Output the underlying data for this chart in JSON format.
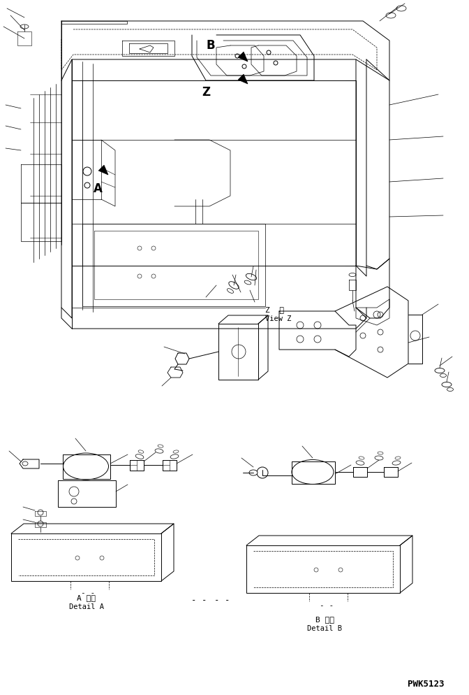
{
  "background_color": "#ffffff",
  "line_color": "#000000",
  "part_code": "PWK5123",
  "label_A_ja": "A 詳細",
  "label_A_en": "Detail A",
  "label_B_ja": "B 詳細",
  "label_B_en": "Detail B",
  "label_Z_ja": "Z  視",
  "label_Z_en": "View Z",
  "arrow_A_label": "A",
  "arrow_B_label": "B",
  "arrow_Z_label": "Z",
  "fig_width": 6.72,
  "fig_height": 9.94,
  "dpi": 100
}
